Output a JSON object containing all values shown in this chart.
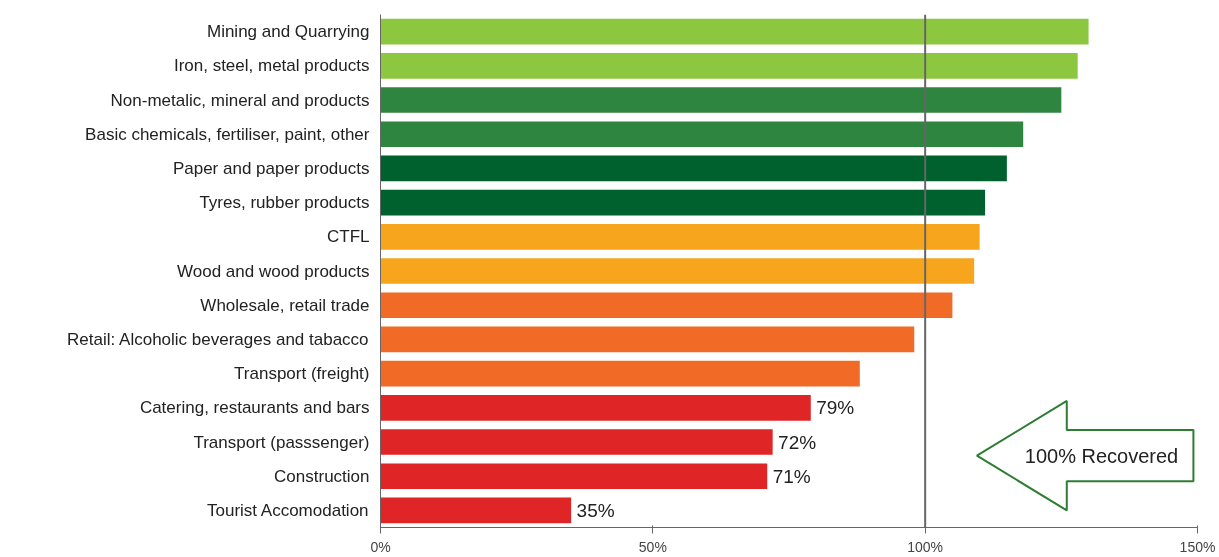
{
  "chart_data": {
    "type": "bar",
    "orientation": "horizontal",
    "categories": [
      "Mining and Quarrying",
      "Iron, steel, metal products",
      "Non-metalic, mineral and products",
      "Basic chemicals, fertiliser, paint, other",
      "Paper and paper products",
      "Tyres, rubber products",
      "CTFL",
      "Wood and wood products",
      "Wholesale, retail trade",
      "Retail: Alcoholic beverages and tabacco",
      "Transport (freight)",
      "Catering, restaurants and bars",
      "Transport (passsenger)",
      "Construction",
      "Tourist Accomodation"
    ],
    "values": [
      130,
      128,
      125,
      118,
      115,
      111,
      110,
      109,
      105,
      98,
      88,
      79,
      72,
      71,
      35
    ],
    "colors": [
      "#8dc63f",
      "#8dc63f",
      "#2e8540",
      "#2e8540",
      "#00612e",
      "#00612e",
      "#f7a51c",
      "#f7a51c",
      "#f26b26",
      "#f26b26",
      "#f26b26",
      "#e02527",
      "#e02527",
      "#e02527",
      "#e02527"
    ],
    "value_labels": [
      null,
      null,
      null,
      null,
      null,
      null,
      null,
      null,
      null,
      null,
      null,
      "79%",
      "72%",
      "71%",
      "35%"
    ],
    "xlim": [
      0,
      150
    ],
    "xticks": [
      {
        "value": 0,
        "label": "0%"
      },
      {
        "value": 50,
        "label": "50%"
      },
      {
        "value": 100,
        "label": "100%"
      },
      {
        "value": 150,
        "label": "150%"
      }
    ],
    "ref_lines": [
      {
        "axis": "x",
        "value": 100,
        "label": null,
        "color": "#666666"
      }
    ],
    "annotations": [
      "100% Recovered"
    ],
    "grid": false
  }
}
